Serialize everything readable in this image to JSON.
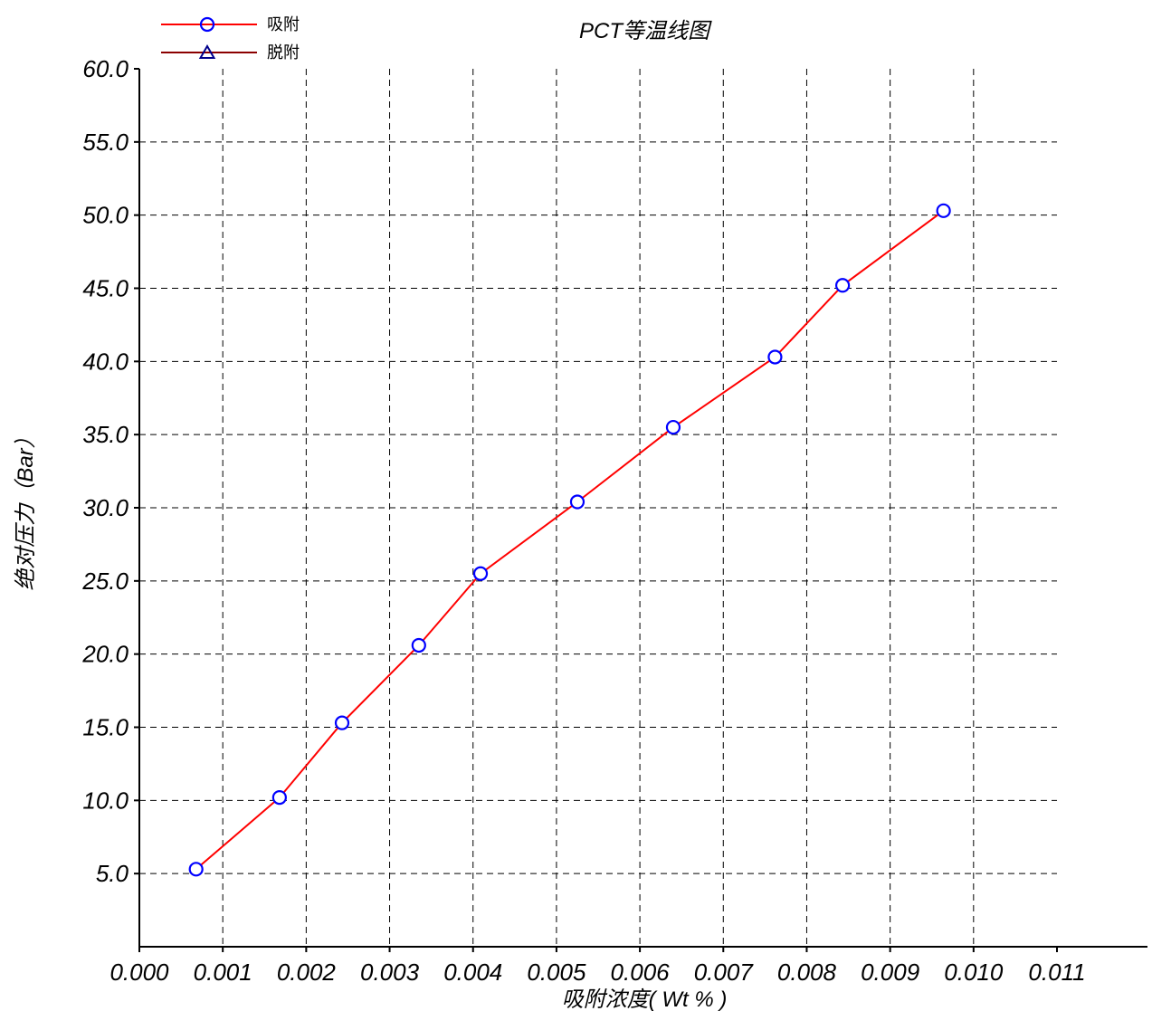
{
  "chart_data": {
    "type": "line",
    "title": "PCT等温线图",
    "xlabel": "吸附浓度( Wt % )",
    "ylabel": "绝对压力（Bar）",
    "xlim": [
      0.0,
      0.011
    ],
    "ylim": [
      0.0,
      60.0
    ],
    "x_ticks": [
      "0.000",
      "0.001",
      "0.002",
      "0.003",
      "0.004",
      "0.005",
      "0.006",
      "0.007",
      "0.008",
      "0.009",
      "0.010",
      "0.011"
    ],
    "y_ticks": [
      "5.0",
      "10.0",
      "15.0",
      "20.0",
      "25.0",
      "30.0",
      "35.0",
      "40.0",
      "45.0",
      "50.0",
      "55.0",
      "60.0"
    ],
    "grid": true,
    "legend_position": "top-left",
    "series": [
      {
        "name": "吸附",
        "color": "#ff0000",
        "marker": "circle",
        "marker_color": "#0000ff",
        "x": [
          0.00068,
          0.00168,
          0.00243,
          0.00335,
          0.00409,
          0.00525,
          0.0064,
          0.00762,
          0.00843,
          0.00964
        ],
        "y": [
          5.3,
          10.2,
          15.3,
          20.6,
          25.5,
          30.4,
          35.5,
          40.3,
          45.2,
          50.3
        ]
      },
      {
        "name": "脱附",
        "color": "#8b0000",
        "marker": "triangle",
        "marker_color": "#00008b",
        "x": [],
        "y": []
      }
    ]
  }
}
